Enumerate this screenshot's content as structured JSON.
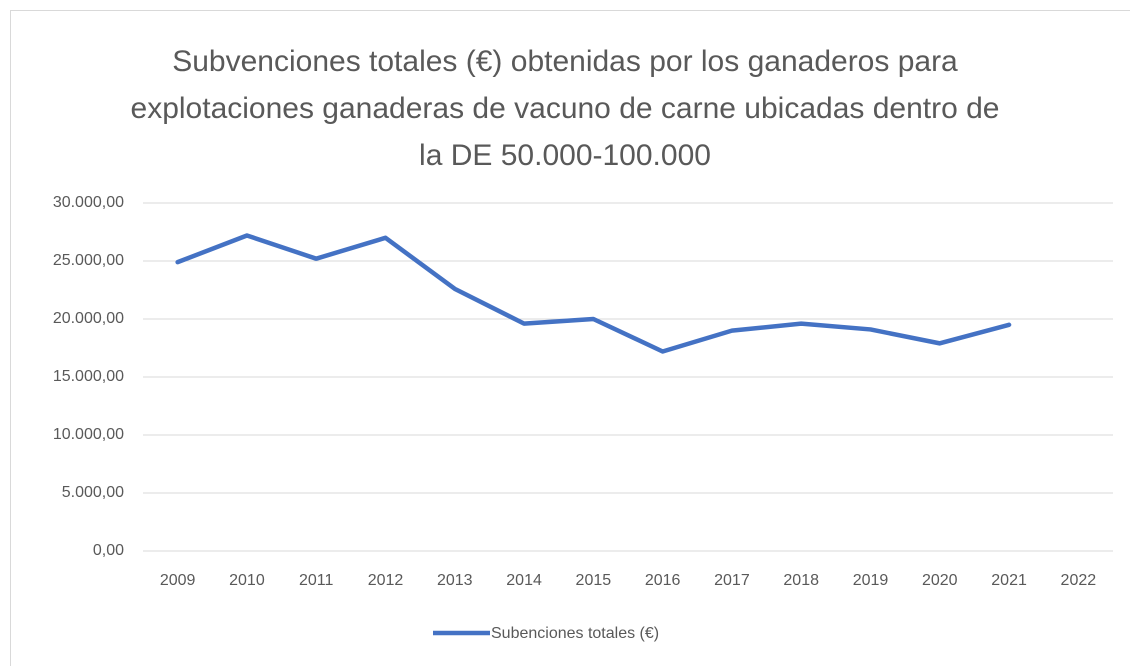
{
  "chart_data": {
    "type": "line",
    "title": "Subvenciones totales (€) obtenidas por los ganaderos para explotaciones ganaderas de vacuno de carne ubicadas dentro de la DE 50.000-100.000",
    "categories": [
      "2009",
      "2010",
      "2011",
      "2012",
      "2013",
      "2014",
      "2015",
      "2016",
      "2017",
      "2018",
      "2019",
      "2020",
      "2021",
      "2022"
    ],
    "series": [
      {
        "name": "Subenciones totales (€)",
        "color": "#4472c4",
        "values": [
          24900,
          27200,
          25200,
          27000,
          22600,
          19600,
          20000,
          17200,
          19000,
          19600,
          19100,
          17900,
          19500,
          null
        ]
      }
    ],
    "ylim": [
      0,
      30000
    ],
    "yticks": [
      {
        "value": 0,
        "label": "0,00"
      },
      {
        "value": 5000,
        "label": "5.000,00"
      },
      {
        "value": 10000,
        "label": "10.000,00"
      },
      {
        "value": 15000,
        "label": "15.000,00"
      },
      {
        "value": 20000,
        "label": "20.000,00"
      },
      {
        "value": 25000,
        "label": "25.000,00"
      },
      {
        "value": 30000,
        "label": "30.000,00"
      }
    ],
    "grid": true,
    "legend": "bottom"
  }
}
